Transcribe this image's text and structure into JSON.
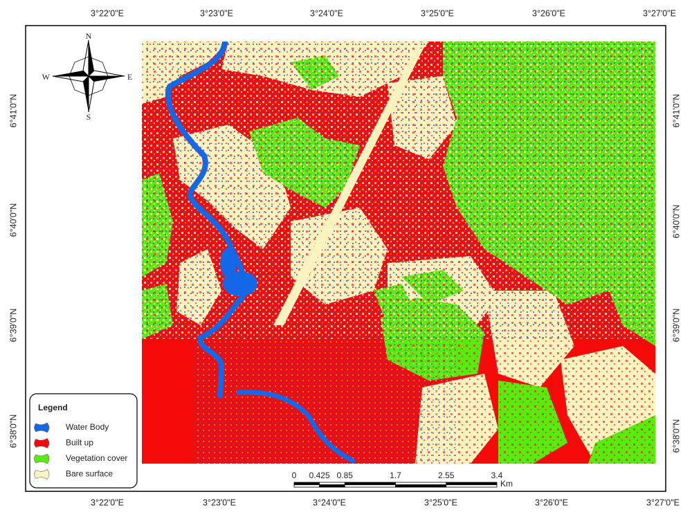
{
  "graticule": {
    "top": [
      "3°22'0\"E",
      "3°23'0\"E",
      "3°24'0\"E",
      "3°25'0\"E",
      "3°26'0\"E",
      "3°27'0\"E"
    ],
    "bottom": [
      "3°22'0\"E",
      "3°23'0\"E",
      "3°24'0\"E",
      "3°25'0\"E",
      "3°26'0\"E",
      "3°27'0\"E"
    ],
    "left": [
      "6°41'0\"N",
      "6°40'0\"N",
      "6°39'0\"N",
      "6°38'0\"N"
    ],
    "right": [
      "6°41'0\"N",
      "6°40'0\"N",
      "6°39'0\"N",
      "6°38'0\"N"
    ]
  },
  "compass": {
    "north": "N",
    "south": "S",
    "east": "E",
    "west": "W"
  },
  "legend": {
    "title": "Legend",
    "items": [
      {
        "label": "Water Body",
        "color": "#1467e6"
      },
      {
        "label": "Built up",
        "color": "#f50a0a"
      },
      {
        "label": "Vegetation cover",
        "color": "#57ec0c"
      },
      {
        "label": "Bare surface",
        "color": "#fcf3bf"
      }
    ]
  },
  "scale_bar": {
    "ticks": [
      0,
      0.425,
      0.85,
      1.7,
      2.55,
      3.4
    ],
    "unit": "Km"
  }
}
